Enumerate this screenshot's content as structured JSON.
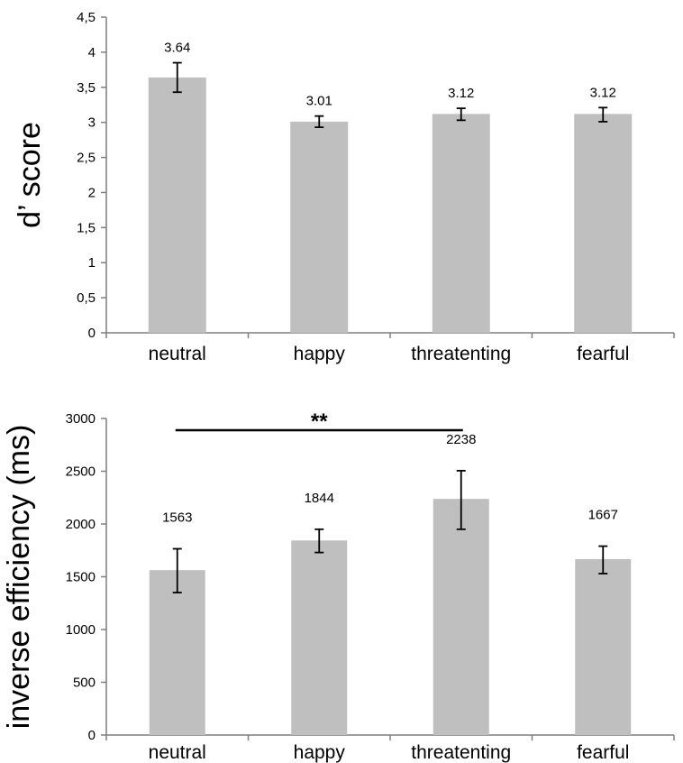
{
  "chart_data": [
    {
      "type": "bar",
      "categories": [
        "neutral",
        "happy",
        "threatenting",
        "fearful"
      ],
      "values": [
        3.64,
        3.01,
        3.12,
        3.12
      ],
      "value_labels": [
        "3.64",
        "3.01",
        "3.12",
        "3.12"
      ],
      "error_low": [
        3.43,
        2.93,
        3.03,
        3.01
      ],
      "error_high": [
        3.85,
        3.09,
        3.2,
        3.21
      ],
      "ylabel": "d’ score",
      "xlabel": "",
      "ylim": [
        0,
        4.5
      ],
      "yticks": [
        0,
        0.5,
        1,
        1.5,
        2,
        2.5,
        3,
        3.5,
        4,
        4.5
      ],
      "ytick_labels": [
        "0",
        "0,5",
        "1",
        "1,5",
        "2",
        "2,5",
        "3",
        "3,5",
        "4",
        "4,5"
      ],
      "grid": false,
      "bar_color": "#bfbfbf"
    },
    {
      "type": "bar",
      "categories": [
        "neutral",
        "happy",
        "threatenting",
        "fearful"
      ],
      "values": [
        1563,
        1844,
        2238,
        1667
      ],
      "value_labels": [
        "1563",
        "1844",
        "2238",
        "1667"
      ],
      "error_low": [
        1350,
        1730,
        1950,
        1530
      ],
      "error_high": [
        1765,
        1950,
        2505,
        1790
      ],
      "ylabel": "inverse efficiency (ms)",
      "xlabel": "",
      "ylim": [
        0,
        3000
      ],
      "yticks": [
        0,
        500,
        1000,
        1500,
        2000,
        2500,
        3000
      ],
      "ytick_labels": [
        "0",
        "500",
        "1000",
        "1500",
        "2000",
        "2500",
        "3000"
      ],
      "grid": false,
      "bar_color": "#bfbfbf",
      "significance": {
        "from": "neutral",
        "to": "threatenting",
        "label": "**"
      }
    }
  ]
}
